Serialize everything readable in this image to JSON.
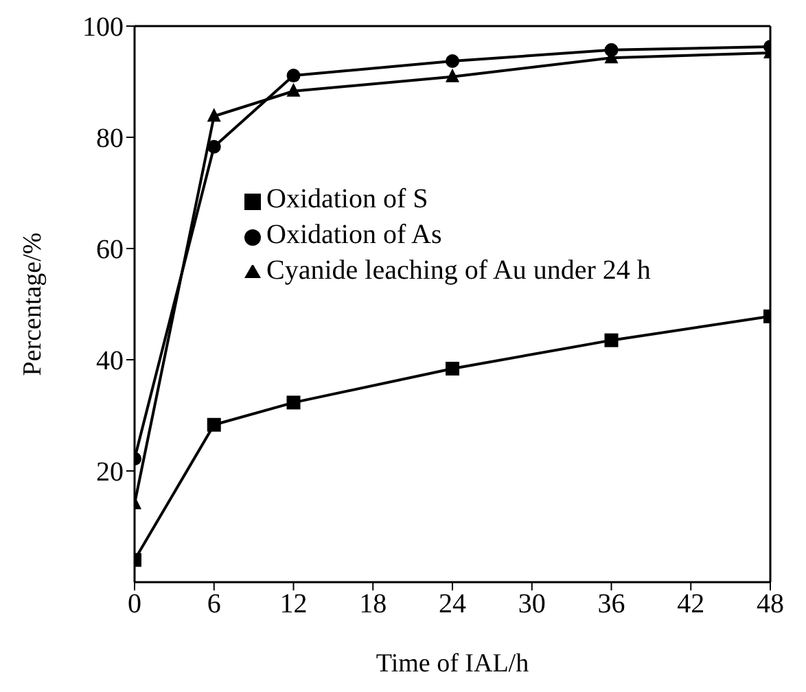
{
  "chart_data": {
    "type": "line",
    "xlabel": "Time of IAL/h",
    "ylabel": "Percentage/%",
    "x": [
      0,
      6,
      12,
      24,
      36,
      48
    ],
    "xlim": [
      0,
      48
    ],
    "xticks": [
      0,
      6,
      12,
      18,
      24,
      30,
      36,
      42,
      48
    ],
    "ylim": [
      0,
      100
    ],
    "yticks": [
      20,
      40,
      60,
      80,
      100
    ],
    "legend": "left",
    "grid": false,
    "series": [
      {
        "name": "Oxidation of S",
        "color": "#000000",
        "marker": "square",
        "values": [
          4,
          28.3,
          32.3,
          38.4,
          43.5,
          47.8
        ]
      },
      {
        "name": "Oxidation of As",
        "color": "#000000",
        "marker": "circle",
        "values": [
          22.2,
          78.3,
          91.1,
          93.7,
          95.7,
          96.3
        ]
      },
      {
        "name": "Cyanide leaching of Au under 24 h",
        "color": "#000000",
        "marker": "triangle",
        "values": [
          14.1,
          83.8,
          88.3,
          90.9,
          94.3,
          95.2
        ]
      }
    ]
  }
}
